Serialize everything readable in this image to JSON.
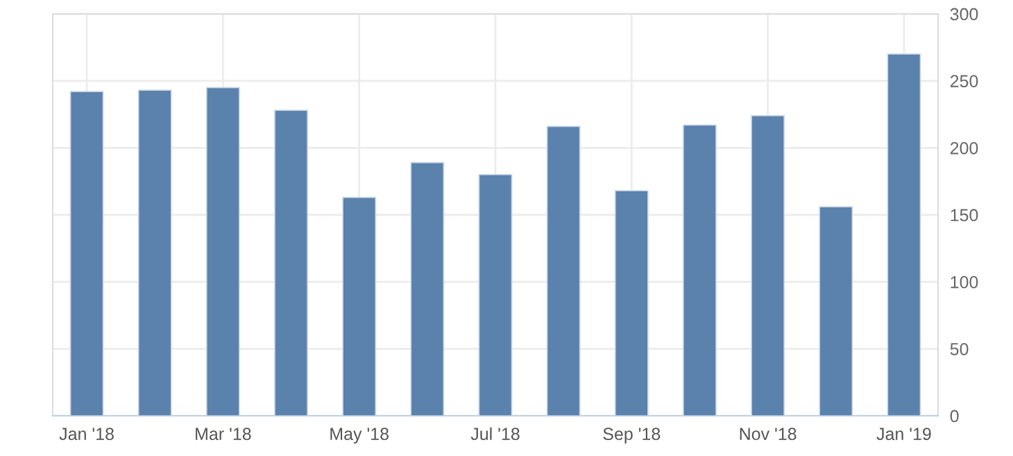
{
  "chart_data": {
    "type": "bar",
    "categories": [
      "Jan '18",
      null,
      "Mar '18",
      null,
      "May '18",
      null,
      "Jul '18",
      null,
      "Sep '18",
      null,
      "Nov '18",
      null,
      "Jan '19"
    ],
    "values": [
      242,
      243,
      245,
      228,
      163,
      189,
      180,
      216,
      168,
      217,
      224,
      156,
      270
    ],
    "color": "#5b81ad",
    "ylim": [
      0,
      300
    ],
    "yticks": [
      0,
      50,
      100,
      150,
      200,
      250,
      300
    ],
    "grid": true
  }
}
